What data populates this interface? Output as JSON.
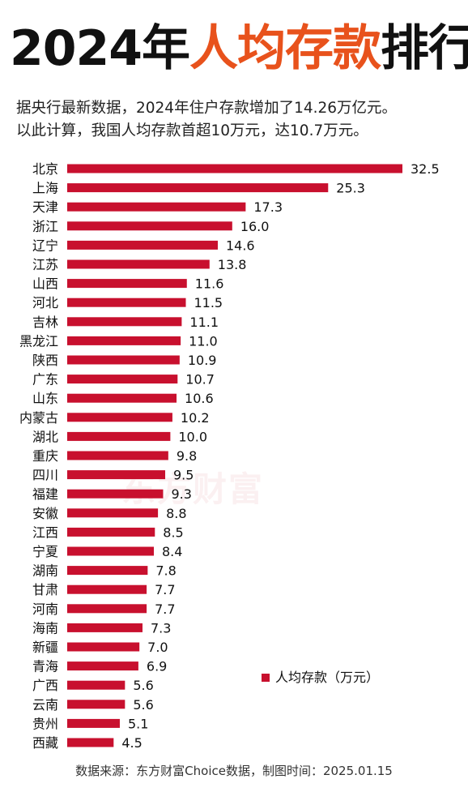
{
  "header": {
    "title_part1": "2024年",
    "title_part2": "人均存款",
    "title_part3": "排行",
    "subtitle_line1": "据央行最新数据，2024年住户存款增加了14.26万亿元。",
    "subtitle_line2": "以此计算，我国人均存款首超10万元，达10.7万元。"
  },
  "watermark": "东方财富",
  "footer": {
    "source": "数据来源：东方财富Choice数据，制图时间：2025.01.15"
  },
  "colors": {
    "bar": "#c8102e",
    "title_accent": "#e8521c",
    "title_main": "#111111"
  },
  "chart_data": {
    "type": "bar",
    "orientation": "horizontal",
    "categories": [
      "北京",
      "上海",
      "天津",
      "浙江",
      "辽宁",
      "江苏",
      "山西",
      "河北",
      "吉林",
      "黑龙江",
      "陕西",
      "广东",
      "山东",
      "内蒙古",
      "湖北",
      "重庆",
      "四川",
      "福建",
      "安徽",
      "江西",
      "宁夏",
      "湖南",
      "甘肃",
      "河南",
      "海南",
      "新疆",
      "青海",
      "广西",
      "云南",
      "贵州",
      "西藏"
    ],
    "series": [
      {
        "name": "人均存款（万元）",
        "values": [
          32.5,
          25.3,
          17.3,
          16.0,
          14.6,
          13.8,
          11.6,
          11.5,
          11.1,
          11.0,
          10.9,
          10.7,
          10.6,
          10.2,
          10.0,
          9.8,
          9.5,
          9.3,
          8.8,
          8.5,
          8.4,
          7.8,
          7.7,
          7.7,
          7.3,
          7.0,
          6.9,
          5.6,
          5.6,
          5.1,
          4.5
        ]
      }
    ],
    "data_labels": [
      "32.5",
      "25.3",
      "17.3",
      "16.0",
      "14.6",
      "13.8",
      "11.6",
      "11.5",
      "11.1",
      "11.0",
      "10.9",
      "10.7",
      "10.6",
      "10.2",
      "10.0",
      "9.8",
      "9.5",
      "9.3",
      "8.8",
      "8.5",
      "8.4",
      "7.8",
      "7.7",
      "7.7",
      "7.3",
      "7.0",
      "6.9",
      "5.6",
      "5.6",
      "5.1",
      "4.5"
    ],
    "xlim": [
      0,
      32.5
    ],
    "grid": false,
    "legend_position": "bottom-right"
  }
}
